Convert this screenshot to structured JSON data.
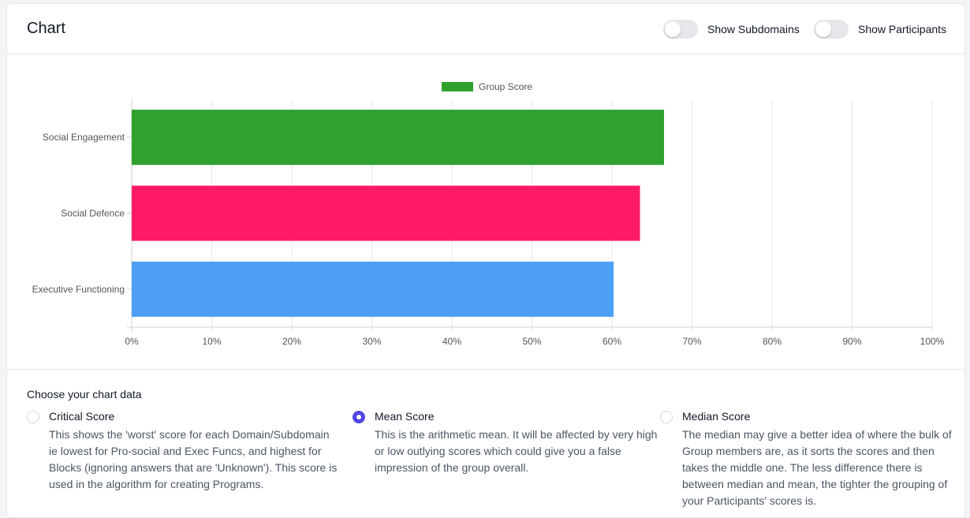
{
  "header": {
    "title": "Chart",
    "toggles": [
      {
        "label": "Show Subdomains",
        "on": false
      },
      {
        "label": "Show Participants",
        "on": false
      }
    ]
  },
  "chart_data": {
    "type": "bar",
    "orientation": "horizontal",
    "categories": [
      "Social Engagement",
      "Social Defence",
      "Executive Functioning"
    ],
    "values": [
      66.5,
      63.5,
      60.2
    ],
    "bar_colors": [
      "#2ea12f",
      "#ff1a66",
      "#4c9ff5"
    ],
    "series": [
      {
        "name": "Group Score",
        "values": [
          66.5,
          63.5,
          60.2
        ]
      }
    ],
    "legend_color": "#2ea12f",
    "xlim": [
      0,
      100
    ],
    "x_ticks": [
      "0%",
      "10%",
      "20%",
      "30%",
      "40%",
      "50%",
      "60%",
      "70%",
      "80%",
      "90%",
      "100%"
    ],
    "grid": true,
    "legend_position": "top"
  },
  "options": {
    "title": "Choose your chart data",
    "items": [
      {
        "label": "Critical Score",
        "checked": false,
        "description": "This shows the 'worst' score for each Domain/Subdomain ie lowest for Pro-social and Exec Funcs, and highest for Blocks (ignoring answers that are 'Unknown'). This score is used in the algorithm for creating Programs."
      },
      {
        "label": "Mean Score",
        "checked": true,
        "description": "This is the arithmetic mean. It will be affected by very high or low outlying scores which could give you a false impression of the group overall."
      },
      {
        "label": "Median Score",
        "checked": false,
        "description": "The median may give a better idea of where the bulk of Group members are, as it sorts the scores and then takes the middle one. The less difference there is between median and mean, the tighter the grouping of your Participants' scores is."
      }
    ]
  }
}
